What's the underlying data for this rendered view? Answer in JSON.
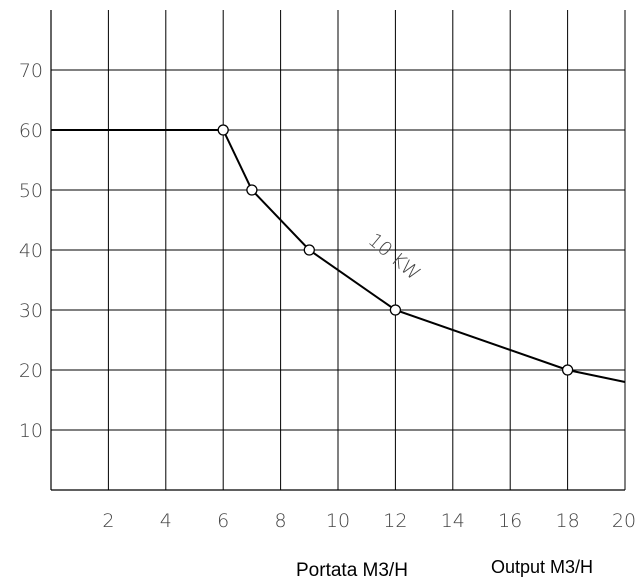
{
  "chart_data": {
    "type": "line",
    "x_ticks": [
      2,
      4,
      6,
      8,
      10,
      12,
      14,
      16,
      18,
      20
    ],
    "y_ticks": [
      10,
      20,
      30,
      40,
      50,
      60,
      70
    ],
    "xlim": [
      0,
      20
    ],
    "ylim": [
      0,
      80
    ],
    "grid": true,
    "xlabel": "Portata M3/H",
    "xlabel_en": "Output M3/H",
    "ylabel": "",
    "series": [
      {
        "name": "10 KW",
        "x": [
          0,
          6,
          7,
          9,
          12,
          18,
          20
        ],
        "y": [
          60,
          60,
          50,
          40,
          30,
          20,
          18
        ],
        "markers": [
          [
            6,
            60
          ],
          [
            7,
            50
          ],
          [
            9,
            40
          ],
          [
            12,
            30
          ],
          [
            18,
            20
          ]
        ]
      }
    ],
    "line_color": "#000000",
    "grid_color": "#000000"
  }
}
